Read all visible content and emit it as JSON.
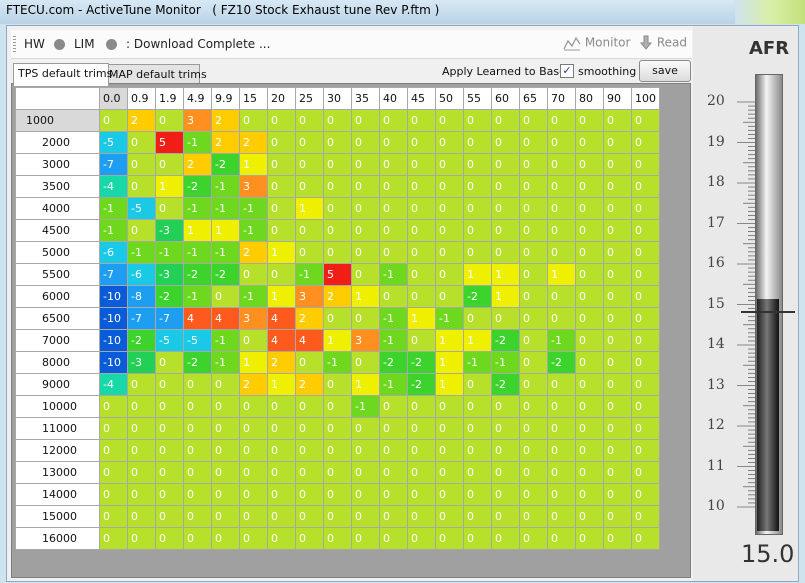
{
  "window": {
    "title": "FTECU.com - ActiveTune Monitor   ( FZ10 Stock Exhaust tune Rev P.ftm )"
  },
  "toolbar": {
    "hw": "HW",
    "lim": "LIM",
    "status": ": Download Complete  ...",
    "monitor": "Monitor",
    "read": "Read"
  },
  "tabs": [
    {
      "label": "TPS default trims"
    },
    {
      "label": "MAP default trims"
    }
  ],
  "controls": {
    "apply_label": "Apply Learned to Base:",
    "smoothing_label": "smoothing",
    "smoothing_checked": "✓",
    "save_label": "save"
  },
  "table": {
    "columns": [
      "0.0",
      "0.9",
      "1.9",
      "4.9",
      "9.9",
      "15",
      "20",
      "25",
      "30",
      "35",
      "40",
      "45",
      "50",
      "55",
      "60",
      "65",
      "70",
      "80",
      "90",
      "100"
    ],
    "rows": [
      {
        "label": "1000",
        "values": [
          0,
          2,
          0,
          3,
          2,
          0,
          0,
          0,
          0,
          0,
          0,
          0,
          0,
          0,
          0,
          0,
          0,
          0,
          0,
          0
        ]
      },
      {
        "label": "2000",
        "values": [
          -5,
          0,
          5,
          -1,
          2,
          2,
          0,
          0,
          0,
          0,
          0,
          0,
          0,
          0,
          0,
          0,
          0,
          0,
          0,
          0
        ]
      },
      {
        "label": "3000",
        "values": [
          -7,
          0,
          0,
          2,
          -2,
          1,
          0,
          0,
          0,
          0,
          0,
          0,
          0,
          0,
          0,
          0,
          0,
          0,
          0,
          0
        ]
      },
      {
        "label": "3500",
        "values": [
          -4,
          0,
          1,
          -2,
          -1,
          3,
          0,
          0,
          0,
          0,
          0,
          0,
          0,
          0,
          0,
          0,
          0,
          0,
          0,
          0
        ]
      },
      {
        "label": "4000",
        "values": [
          -1,
          -5,
          0,
          -1,
          -1,
          -1,
          0,
          1,
          0,
          0,
          0,
          0,
          0,
          0,
          0,
          0,
          0,
          0,
          0,
          0
        ]
      },
      {
        "label": "4500",
        "values": [
          -1,
          0,
          -3,
          1,
          1,
          -1,
          0,
          0,
          0,
          0,
          0,
          0,
          0,
          0,
          0,
          0,
          0,
          0,
          0,
          0
        ]
      },
      {
        "label": "5000",
        "values": [
          -6,
          -1,
          -1,
          -1,
          -1,
          2,
          1,
          0,
          0,
          0,
          0,
          0,
          0,
          0,
          0,
          0,
          0,
          0,
          0,
          0
        ]
      },
      {
        "label": "5500",
        "values": [
          -7,
          -6,
          -3,
          -2,
          -2,
          0,
          0,
          -1,
          5,
          0,
          -1,
          0,
          0,
          1,
          1,
          0,
          1,
          0,
          0,
          0
        ]
      },
      {
        "label": "6000",
        "values": [
          -10,
          -8,
          -2,
          -1,
          0,
          -1,
          1,
          3,
          2,
          1,
          0,
          0,
          0,
          -2,
          1,
          0,
          0,
          0,
          0,
          0
        ]
      },
      {
        "label": "6500",
        "values": [
          -10,
          -7,
          -7,
          4,
          4,
          3,
          4,
          2,
          0,
          0,
          -1,
          1,
          -1,
          0,
          0,
          0,
          0,
          0,
          0,
          0
        ]
      },
      {
        "label": "7000",
        "values": [
          -10,
          -2,
          -5,
          -5,
          -1,
          0,
          4,
          4,
          1,
          3,
          -1,
          0,
          1,
          1,
          -2,
          0,
          -1,
          0,
          0,
          0
        ]
      },
      {
        "label": "8000",
        "values": [
          -10,
          -3,
          0,
          -2,
          -1,
          1,
          2,
          0,
          -1,
          0,
          -2,
          -2,
          1,
          -1,
          -1,
          0,
          -2,
          0,
          0,
          0
        ]
      },
      {
        "label": "9000",
        "values": [
          -4,
          0,
          0,
          0,
          0,
          2,
          1,
          2,
          0,
          1,
          -1,
          -2,
          1,
          0,
          -2,
          0,
          0,
          0,
          0,
          0
        ]
      },
      {
        "label": "10000",
        "values": [
          0,
          0,
          0,
          0,
          0,
          0,
          0,
          0,
          0,
          -1,
          0,
          0,
          0,
          0,
          0,
          0,
          0,
          0,
          0,
          0
        ]
      },
      {
        "label": "11000",
        "values": [
          0,
          0,
          0,
          0,
          0,
          0,
          0,
          0,
          0,
          0,
          0,
          0,
          0,
          0,
          0,
          0,
          0,
          0,
          0,
          0
        ]
      },
      {
        "label": "12000",
        "values": [
          0,
          0,
          0,
          0,
          0,
          0,
          0,
          0,
          0,
          0,
          0,
          0,
          0,
          0,
          0,
          0,
          0,
          0,
          0,
          0
        ]
      },
      {
        "label": "13000",
        "values": [
          0,
          0,
          0,
          0,
          0,
          0,
          0,
          0,
          0,
          0,
          0,
          0,
          0,
          0,
          0,
          0,
          0,
          0,
          0,
          0
        ]
      },
      {
        "label": "14000",
        "values": [
          0,
          0,
          0,
          0,
          0,
          0,
          0,
          0,
          0,
          0,
          0,
          0,
          0,
          0,
          0,
          0,
          0,
          0,
          0,
          0
        ]
      },
      {
        "label": "15000",
        "values": [
          0,
          0,
          0,
          0,
          0,
          0,
          0,
          0,
          0,
          0,
          0,
          0,
          0,
          0,
          0,
          0,
          0,
          0,
          0,
          0
        ]
      },
      {
        "label": "16000",
        "values": [
          0,
          0,
          0,
          0,
          0,
          0,
          0,
          0,
          0,
          0,
          0,
          0,
          0,
          0,
          0,
          0,
          0,
          0,
          0,
          0
        ]
      }
    ]
  },
  "colors": {
    "neg10": "#0a5bd8",
    "neg8": "#1e9ef0",
    "neg6": "#19c9e6",
    "neg4": "#18d8a8",
    "neg3": "#22d055",
    "neg2": "#3cd42c",
    "neg1": "#6dd81e",
    "zero": "#b6e02a",
    "pos1": "#eef000",
    "pos2": "#ffcc00",
    "pos3": "#ff9020",
    "pos4": "#ff5a1e",
    "pos5": "#f01e14"
  },
  "gauge": {
    "title": "AFR",
    "ticks": [
      "20",
      "19",
      "18",
      "17",
      "16",
      "15",
      "14",
      "13",
      "12",
      "11",
      "10"
    ],
    "min": 10,
    "max": 20,
    "value": 15.0,
    "readout": "15.0"
  }
}
